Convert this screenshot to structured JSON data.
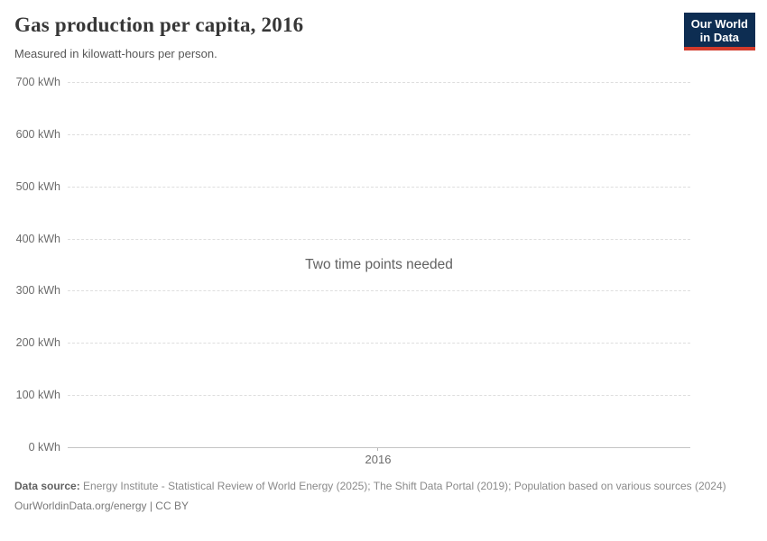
{
  "header": {
    "title": "Gas production per capita, 2016",
    "subtitle": "Measured in kilowatt-hours per person."
  },
  "logo": {
    "line1": "Our World",
    "line2": "in Data",
    "background_color": "#0d2d52",
    "accent_color": "#d23a2b"
  },
  "chart_data": {
    "type": "line",
    "title": "Gas production per capita, 2016",
    "unit": "kilowatt-hours per person",
    "empty_message": "Two time points needed",
    "series": [],
    "xtick_labels": [
      "2016"
    ],
    "ylim": [
      0,
      700
    ],
    "yticks": [
      0,
      100,
      200,
      300,
      400,
      500,
      600,
      700
    ],
    "ytick_labels": [
      "0 kWh",
      "100 kWh",
      "200 kWh",
      "300 kWh",
      "400 kWh",
      "500 kWh",
      "600 kWh",
      "700 kWh"
    ],
    "grid": "horizontal-dashed",
    "legend": "none"
  },
  "footer": {
    "source_prefix": "Data source:",
    "source_text": "Energy Institute - Statistical Review of World Energy (2025); The Shift Data Portal (2019); Population based on various sources (2024)",
    "license": "OurWorldinData.org/energy | CC BY"
  }
}
